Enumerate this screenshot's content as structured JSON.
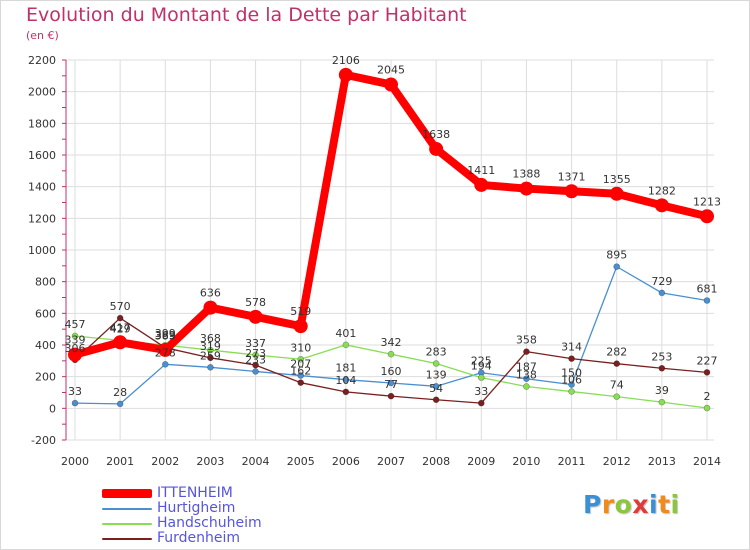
{
  "title": "Evolution du Montant de la Dette par Habitant",
  "subtitle": "(en €)",
  "logo": {
    "text": "Proxiti",
    "letters": [
      {
        "ch": "P",
        "color": "#3a8fd6"
      },
      {
        "ch": "r",
        "color": "#f08a1d"
      },
      {
        "ch": "o",
        "color": "#8cc63f"
      },
      {
        "ch": "x",
        "color": "#e03a3a"
      },
      {
        "ch": "i",
        "color": "#3a8fd6"
      },
      {
        "ch": "t",
        "color": "#f08a1d"
      },
      {
        "ch": "i",
        "color": "#8cc63f"
      }
    ]
  },
  "chart_data": {
    "type": "line",
    "title": "Evolution du Montant de la Dette par Habitant",
    "subtitle": "(en €)",
    "x": [
      "2000",
      "2001",
      "2002",
      "2003",
      "2004",
      "2005",
      "2006",
      "2007",
      "2008",
      "2009",
      "2010",
      "2011",
      "2012",
      "2013",
      "2014"
    ],
    "ylim": [
      -200,
      2200
    ],
    "yticks": [
      -200,
      0,
      200,
      400,
      600,
      800,
      1000,
      1200,
      1400,
      1600,
      1800,
      2000,
      2200
    ],
    "grid": true,
    "legend_position": "bottom-left",
    "series": [
      {
        "name": "ITTENHEIM",
        "color": "#ff0000",
        "values": [
          339,
          417,
          369,
          636,
          578,
          519,
          2106,
          2045,
          1638,
          1411,
          1388,
          1371,
          1355,
          1282,
          1213
        ]
      },
      {
        "name": "Hurtigheim",
        "color": "#4a8fd0",
        "values": [
          33,
          28,
          278,
          259,
          233,
          207,
          181,
          160,
          139,
          225,
          187,
          150,
          895,
          729,
          681
        ]
      },
      {
        "name": "Handschuheim",
        "color": "#88dd55",
        "values": [
          457,
          429,
          399,
          368,
          337,
          310,
          401,
          342,
          283,
          194,
          138,
          106,
          74,
          39,
          2
        ]
      },
      {
        "name": "Furdenheim",
        "color": "#7a2020",
        "values": [
          306,
          570,
          383,
          319,
          273,
          162,
          104,
          77,
          54,
          33,
          358,
          314,
          282,
          253,
          227
        ]
      }
    ]
  }
}
